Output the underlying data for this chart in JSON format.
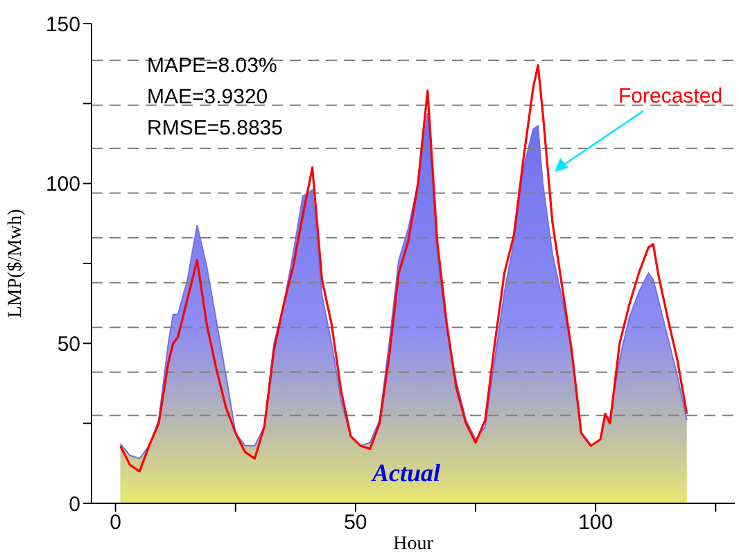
{
  "chart_data": {
    "type": "line",
    "xlabel": "Hour",
    "ylabel": "LMP($/Mwh)",
    "annotations": [
      "MAPE=8.03%",
      "MAE=3.9320",
      "RMSE=5.8835"
    ],
    "x": [
      1,
      3,
      5,
      7,
      9,
      11,
      12,
      13,
      15,
      17,
      19,
      21,
      23,
      25,
      27,
      29,
      31,
      33,
      35,
      37,
      39,
      41,
      43,
      45,
      47,
      49,
      51,
      53,
      55,
      57,
      59,
      61,
      63,
      65,
      67,
      69,
      71,
      73,
      75,
      77,
      79,
      81,
      83,
      85,
      87,
      88,
      89,
      91,
      93,
      95,
      97,
      99,
      101,
      102,
      103,
      105,
      107,
      109,
      111,
      112,
      113,
      115,
      117,
      119
    ],
    "series": [
      {
        "name": "Actual",
        "type": "area",
        "color": "#7070f0",
        "values": [
          18.6,
          15,
          14,
          18,
          26,
          50,
          59,
          59,
          70,
          87,
          74,
          57,
          40,
          22,
          18,
          18,
          24,
          50,
          62,
          78,
          96,
          98,
          65,
          50,
          32,
          21,
          18,
          19,
          26,
          50,
          76,
          86,
          100,
          122,
          78,
          54,
          38,
          26,
          20,
          24,
          45,
          66,
          82,
          105,
          117,
          118,
          100,
          78,
          64,
          48,
          22,
          18,
          20,
          27,
          27,
          45,
          58,
          66,
          72,
          70,
          64,
          52,
          40,
          26
        ]
      },
      {
        "name": "Forecasted",
        "color": "#ff0000",
        "values": [
          18,
          12,
          10,
          18,
          25,
          44,
          50,
          52,
          64,
          76,
          56,
          42,
          30,
          22,
          16,
          14,
          24,
          48,
          62,
          74,
          90,
          105,
          70,
          56,
          35,
          21,
          18,
          17,
          25,
          46,
          72,
          82,
          100,
          129,
          82,
          56,
          36,
          25,
          19,
          26,
          50,
          72,
          84,
          108,
          130,
          137,
          122,
          88,
          68,
          48,
          22,
          18,
          20,
          28,
          25,
          50,
          62,
          72,
          80,
          81,
          72,
          58,
          45,
          28
        ]
      }
    ],
    "xlim": [
      -5,
      129
    ],
    "xticks": [
      0,
      {
        "value": 25,
        "label": null
      },
      50,
      {
        "value": 75,
        "label": null
      },
      100,
      {
        "value": 125,
        "label": null
      }
    ],
    "ylim": [
      0,
      150
    ],
    "yticks": [
      0,
      {
        "value": 25,
        "label": null
      },
      50,
      {
        "value": 75,
        "label": null
      },
      100,
      {
        "value": 125,
        "label": null
      },
      150
    ],
    "ref_lines": [
      {
        "axis": "y",
        "value": 27.5,
        "color": "#808080",
        "line_style": "dashed"
      },
      {
        "axis": "y",
        "value": 41,
        "color": "#808080",
        "line_style": "dashed"
      },
      {
        "axis": "y",
        "value": 55,
        "color": "#808080",
        "line_style": "dashed"
      },
      {
        "axis": "y",
        "value": 69,
        "color": "#808080",
        "line_style": "dashed"
      },
      {
        "axis": "y",
        "value": 83,
        "color": "#808080",
        "line_style": "dashed"
      },
      {
        "axis": "y",
        "value": 97,
        "color": "#808080",
        "line_style": "dashed"
      },
      {
        "axis": "y",
        "value": 111,
        "color": "#808080",
        "line_style": "dashed"
      },
      {
        "axis": "y",
        "value": 124.5,
        "color": "#808080",
        "line_style": "dashed"
      },
      {
        "axis": "y",
        "value": 138.5,
        "color": "#808080",
        "line_style": "dashed"
      }
    ],
    "grid": false
  }
}
